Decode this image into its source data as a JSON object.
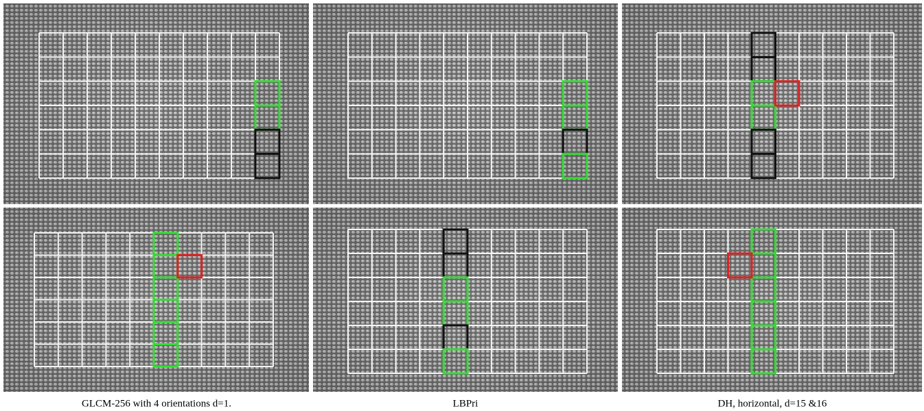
{
  "captions": [
    "GLCM-256 with 4 orientations d=1.",
    "LBPri",
    "DH, horizontal, d=15 &16"
  ]
}
